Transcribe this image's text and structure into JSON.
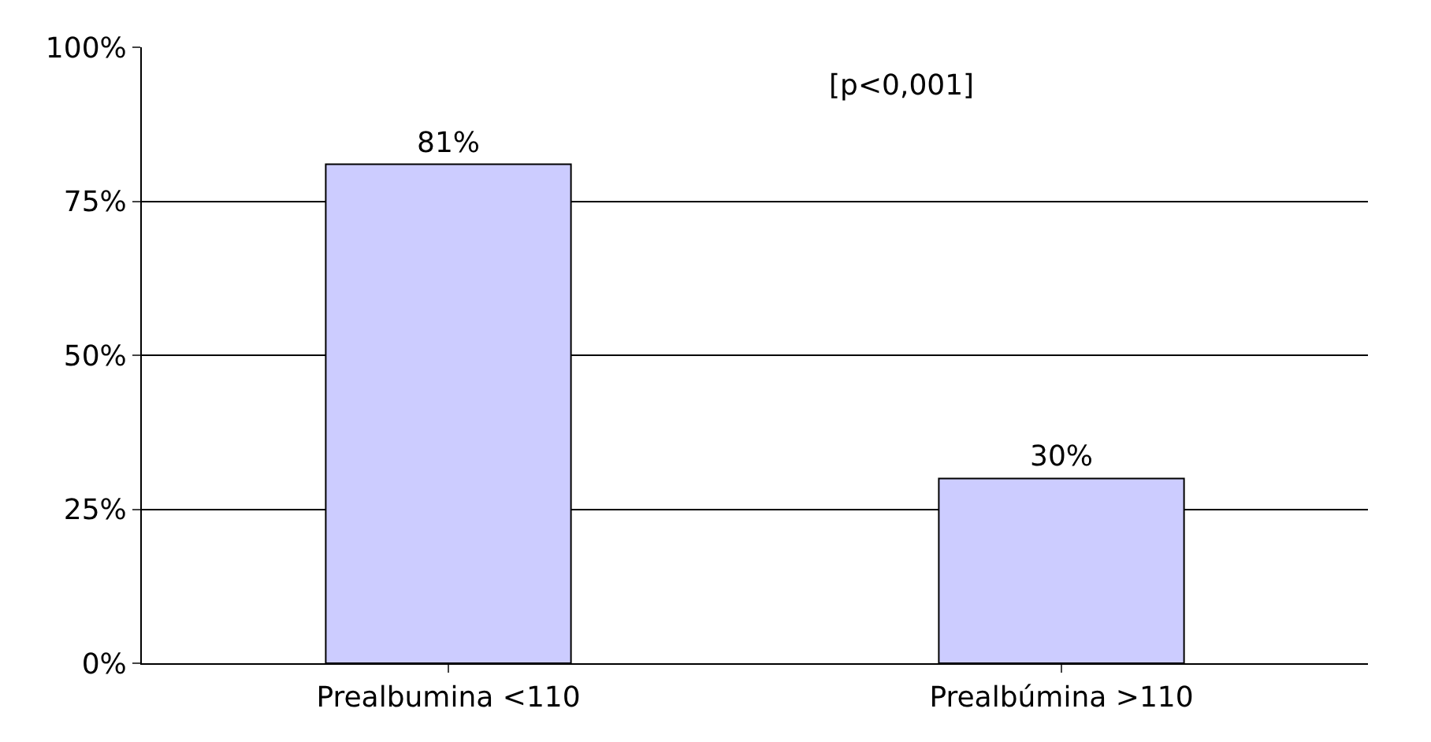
{
  "chart_data": {
    "type": "bar",
    "categories": [
      "Prealbumina <110",
      "Prealbúmina >110"
    ],
    "values": [
      81,
      30
    ],
    "color": "#ccccff",
    "value_labels": [
      "81%",
      "30%"
    ],
    "ylim": [
      0,
      100
    ],
    "yticks": [
      {
        "value": 0,
        "label": "0%"
      },
      {
        "value": 25,
        "label": "25%"
      },
      {
        "value": 50,
        "label": "50%"
      },
      {
        "value": 75,
        "label": "75%"
      },
      {
        "value": 100,
        "label": "100%"
      }
    ],
    "grid": "y",
    "annotations": [
      "[p<0,001]"
    ]
  }
}
